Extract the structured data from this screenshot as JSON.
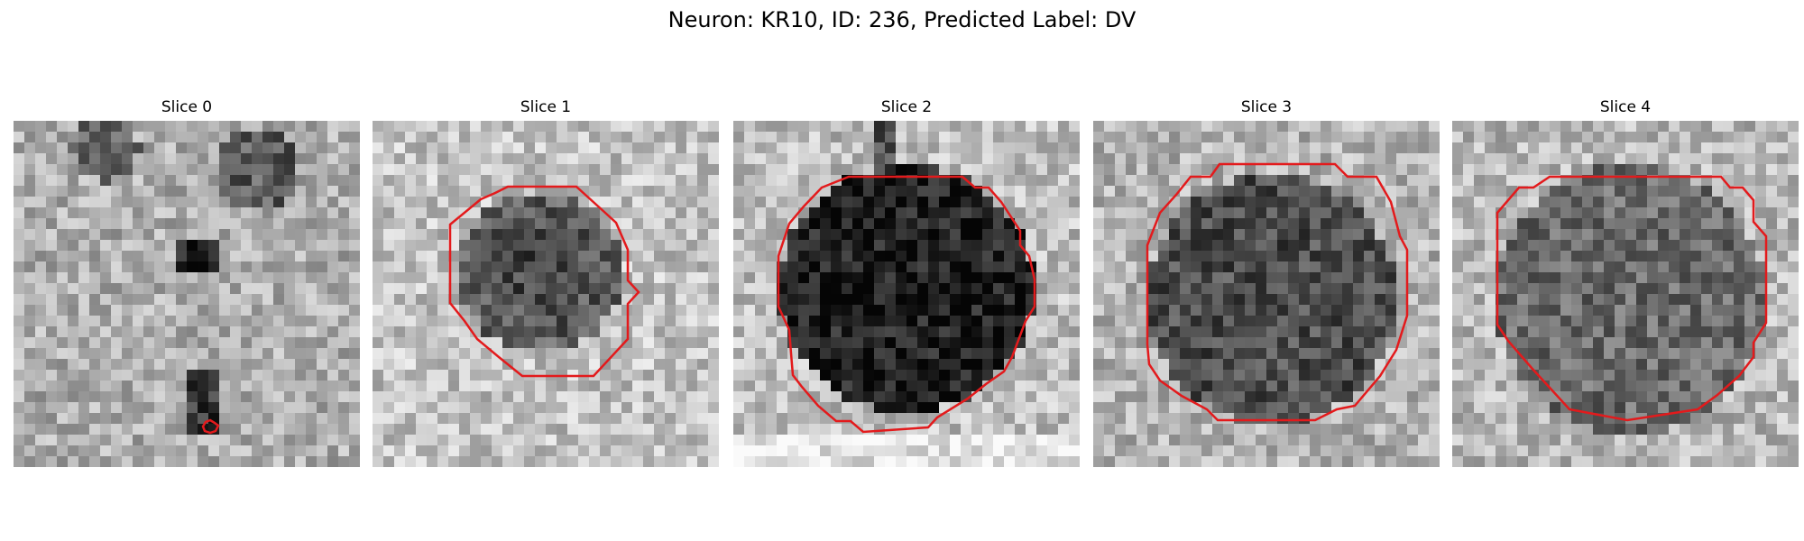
{
  "figure": {
    "title": "Neuron: KR10, ID: 236, Predicted Label: DV"
  },
  "colors": {
    "background": "#ffffff",
    "contour": "#e31a1c",
    "colormap": "grayscale"
  },
  "panels": [
    {
      "title": "Slice 0",
      "seed": 11,
      "cell": "none",
      "marker": "small red contour near center"
    },
    {
      "title": "Slice 1",
      "seed": 23,
      "cell": "dark round cell",
      "marker": "red contour"
    },
    {
      "title": "Slice 2",
      "seed": 37,
      "cell": "very dark round cell",
      "marker": "red contour"
    },
    {
      "title": "Slice 3",
      "seed": 51,
      "cell": "dark round cell",
      "marker": "red contour"
    },
    {
      "title": "Slice 4",
      "seed": 67,
      "cell": "medium dark round cell",
      "marker": "red contour"
    }
  ]
}
